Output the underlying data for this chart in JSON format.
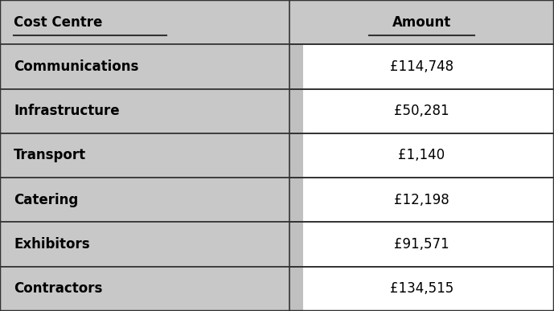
{
  "headers": [
    "Cost Centre",
    "Amount"
  ],
  "rows": [
    [
      "Communications",
      "£114,748"
    ],
    [
      "Infrastructure",
      "£50,281"
    ],
    [
      "Transport",
      "£1,140"
    ],
    [
      "Catering",
      "£12,198"
    ],
    [
      "Exhibitors",
      "£91,571"
    ],
    [
      "Contractors",
      "£134,515"
    ]
  ],
  "header_bg": "#c8c8c8",
  "row_left_bg": "#c8c8c8",
  "row_right_bg": "#ffffff",
  "right_strip_bg": "#c0c0c0",
  "border_color": "#333333",
  "text_color": "#000000",
  "header_font_size": 12,
  "row_font_size": 12,
  "col_split": 0.522,
  "fig_width": 6.89,
  "fig_height": 3.87,
  "dpi": 100
}
